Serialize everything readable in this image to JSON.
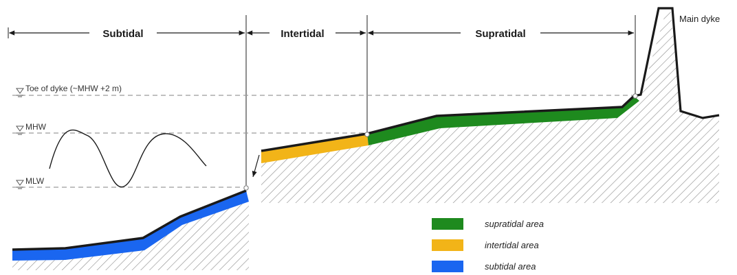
{
  "zones": {
    "subtidal": "Subtidal",
    "intertidal": "Intertidal",
    "supratidal": "Supratidal"
  },
  "levels": {
    "toe": "Toe of dyke (~MHW +2 m)",
    "mhw": "MHW",
    "mlw": "MLW"
  },
  "structure": {
    "main_dyke": "Main dyke"
  },
  "legend": {
    "items": [
      {
        "label": "supratidal area",
        "color": "#1e8a1e"
      },
      {
        "label": "intertidal area",
        "color": "#f2b418"
      },
      {
        "label": "subtidal area",
        "color": "#1a66f0"
      }
    ]
  },
  "colors": {
    "hatch": "#8a8a8a",
    "surface": "#1a1a1a",
    "dashed": "#9a9a9a"
  }
}
